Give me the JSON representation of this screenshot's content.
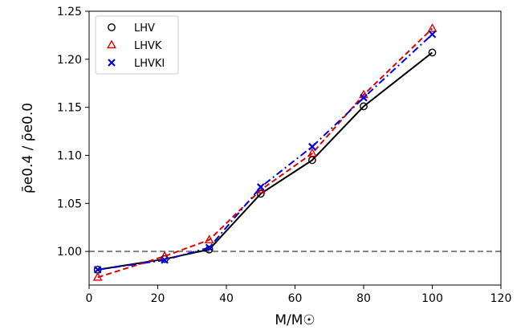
{
  "chart_data": {
    "type": "line",
    "title": "",
    "xlabel": "M/M☉",
    "ylabel": "ρ̄e0.4 / ρ̄e0.0",
    "xlim": [
      0,
      120
    ],
    "ylim": [
      0.965,
      1.25
    ],
    "xticks": [
      0,
      20,
      40,
      60,
      80,
      100,
      120
    ],
    "yticks": [
      1.0,
      1.05,
      1.1,
      1.15,
      1.2,
      1.25
    ],
    "grid": false,
    "legend_position": "top-left",
    "reference_line": {
      "y": 1.0,
      "color": "#808080",
      "style": "dashed"
    },
    "series": [
      {
        "name": "LHV",
        "color": "#000000",
        "marker": "circle",
        "line_style": "solid",
        "x": [
          2.5,
          22,
          35,
          50,
          65,
          80,
          100
        ],
        "y": [
          0.981,
          0.992,
          1.002,
          1.06,
          1.095,
          1.151,
          1.207
        ]
      },
      {
        "name": "LHVK",
        "color": "#e00000",
        "marker": "triangle",
        "line_style": "dashed",
        "x": [
          2.5,
          22,
          35,
          50,
          65,
          80,
          100
        ],
        "y": [
          0.973,
          0.995,
          1.012,
          1.064,
          1.102,
          1.163,
          1.232
        ]
      },
      {
        "name": "LHVKI",
        "color": "#0000e0",
        "marker": "x",
        "line_style": "dashdot",
        "x": [
          2.5,
          22,
          35,
          50,
          65,
          80,
          100
        ],
        "y": [
          0.981,
          0.991,
          1.004,
          1.067,
          1.109,
          1.16,
          1.226
        ]
      }
    ]
  }
}
